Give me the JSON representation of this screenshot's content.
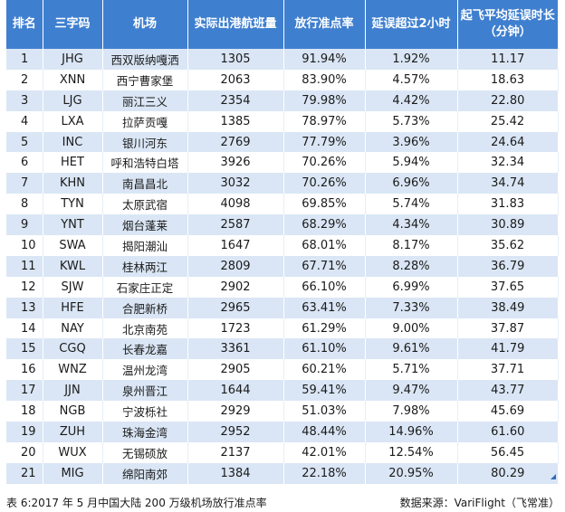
{
  "table": {
    "headers": {
      "rank": "排名",
      "code": "三字码",
      "airport": "机场",
      "flights": "实际出港航班量",
      "on_time_rate": "放行准点率",
      "delay_over_2h": "延误超过2小时",
      "avg_delay_line1": "起飞平均延误时长",
      "avg_delay_line2": "（分钟）"
    },
    "rows": [
      {
        "rank": "1",
        "code": "JHG",
        "airport": "西双版纳嘎洒",
        "flights": "1305",
        "on_time_rate": "91.94%",
        "delay_over_2h": "1.92%",
        "avg_delay": "11.17"
      },
      {
        "rank": "2",
        "code": "XNN",
        "airport": "西宁曹家堡",
        "flights": "2063",
        "on_time_rate": "83.90%",
        "delay_over_2h": "4.57%",
        "avg_delay": "18.63"
      },
      {
        "rank": "3",
        "code": "LJG",
        "airport": "丽江三义",
        "flights": "2354",
        "on_time_rate": "79.98%",
        "delay_over_2h": "4.42%",
        "avg_delay": "22.80"
      },
      {
        "rank": "4",
        "code": "LXA",
        "airport": "拉萨贡嘎",
        "flights": "1385",
        "on_time_rate": "78.97%",
        "delay_over_2h": "5.73%",
        "avg_delay": "25.42"
      },
      {
        "rank": "5",
        "code": "INC",
        "airport": "银川河东",
        "flights": "2769",
        "on_time_rate": "77.79%",
        "delay_over_2h": "3.96%",
        "avg_delay": "24.64"
      },
      {
        "rank": "6",
        "code": "HET",
        "airport": "呼和浩特白塔",
        "flights": "3926",
        "on_time_rate": "70.26%",
        "delay_over_2h": "5.94%",
        "avg_delay": "32.34"
      },
      {
        "rank": "7",
        "code": "KHN",
        "airport": "南昌昌北",
        "flights": "3032",
        "on_time_rate": "70.26%",
        "delay_over_2h": "6.96%",
        "avg_delay": "34.74"
      },
      {
        "rank": "8",
        "code": "TYN",
        "airport": "太原武宿",
        "flights": "4098",
        "on_time_rate": "69.85%",
        "delay_over_2h": "5.74%",
        "avg_delay": "31.83"
      },
      {
        "rank": "9",
        "code": "YNT",
        "airport": "烟台蓬莱",
        "flights": "2587",
        "on_time_rate": "68.29%",
        "delay_over_2h": "4.34%",
        "avg_delay": "30.89"
      },
      {
        "rank": "10",
        "code": "SWA",
        "airport": "揭阳潮汕",
        "flights": "1647",
        "on_time_rate": "68.01%",
        "delay_over_2h": "8.17%",
        "avg_delay": "35.62"
      },
      {
        "rank": "11",
        "code": "KWL",
        "airport": "桂林两江",
        "flights": "2809",
        "on_time_rate": "67.71%",
        "delay_over_2h": "8.28%",
        "avg_delay": "36.79"
      },
      {
        "rank": "12",
        "code": "SJW",
        "airport": "石家庄正定",
        "flights": "2902",
        "on_time_rate": "66.10%",
        "delay_over_2h": "6.99%",
        "avg_delay": "37.65"
      },
      {
        "rank": "13",
        "code": "HFE",
        "airport": "合肥新桥",
        "flights": "2965",
        "on_time_rate": "63.41%",
        "delay_over_2h": "7.33%",
        "avg_delay": "38.49"
      },
      {
        "rank": "14",
        "code": "NAY",
        "airport": "北京南苑",
        "flights": "1723",
        "on_time_rate": "61.29%",
        "delay_over_2h": "9.00%",
        "avg_delay": "37.87"
      },
      {
        "rank": "15",
        "code": "CGQ",
        "airport": "长春龙嘉",
        "flights": "3361",
        "on_time_rate": "61.10%",
        "delay_over_2h": "9.61%",
        "avg_delay": "41.79"
      },
      {
        "rank": "16",
        "code": "WNZ",
        "airport": "温州龙湾",
        "flights": "2905",
        "on_time_rate": "60.21%",
        "delay_over_2h": "5.71%",
        "avg_delay": "37.71"
      },
      {
        "rank": "17",
        "code": "JJN",
        "airport": "泉州晋江",
        "flights": "1644",
        "on_time_rate": "59.41%",
        "delay_over_2h": "9.47%",
        "avg_delay": "43.77"
      },
      {
        "rank": "18",
        "code": "NGB",
        "airport": "宁波栎社",
        "flights": "2929",
        "on_time_rate": "51.03%",
        "delay_over_2h": "7.98%",
        "avg_delay": "45.69"
      },
      {
        "rank": "19",
        "code": "ZUH",
        "airport": "珠海金湾",
        "flights": "2952",
        "on_time_rate": "48.44%",
        "delay_over_2h": "14.96%",
        "avg_delay": "61.60"
      },
      {
        "rank": "20",
        "code": "WUX",
        "airport": "无锡硕放",
        "flights": "2137",
        "on_time_rate": "42.01%",
        "delay_over_2h": "12.54%",
        "avg_delay": "56.45"
      },
      {
        "rank": "21",
        "code": "MIG",
        "airport": "绵阳南郊",
        "flights": "1384",
        "on_time_rate": "22.18%",
        "delay_over_2h": "20.95%",
        "avg_delay": "80.29"
      }
    ]
  },
  "caption": "表 6:2017 年 5 月中国大陆 200 万级机场放行准点率",
  "source": "数据来源：VariFlight（飞常准）",
  "colors": {
    "header_bg": "#3f7fcf",
    "stripe_bg": "#dae6f5"
  }
}
